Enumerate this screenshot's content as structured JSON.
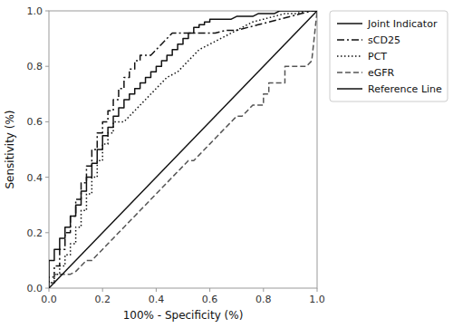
{
  "chart_data": {
    "type": "line",
    "xlabel": "100% - Specificity (%)",
    "ylabel": "Sensitivity (%)",
    "xlim": [
      0.0,
      1.0
    ],
    "ylim": [
      0.0,
      1.0
    ],
    "xticks": [
      {
        "value": 0.0,
        "label": "0.0"
      },
      0.2,
      0.4,
      0.6,
      0.8,
      {
        "value": 1.0,
        "label": "1.0"
      }
    ],
    "yticks": [
      {
        "value": 0.0,
        "label": "0.0"
      },
      0.2,
      0.4,
      0.6,
      0.8,
      {
        "value": 1.0,
        "label": "1.0"
      }
    ],
    "grid": false,
    "legend": "right",
    "series": [
      {
        "name": "Joint Indicator",
        "color": "#111111",
        "line_style": "solid",
        "x": [
          0.0,
          0.0,
          0.02,
          0.02,
          0.04,
          0.04,
          0.06,
          0.06,
          0.08,
          0.08,
          0.1,
          0.1,
          0.12,
          0.12,
          0.14,
          0.14,
          0.16,
          0.16,
          0.18,
          0.18,
          0.2,
          0.2,
          0.22,
          0.22,
          0.24,
          0.24,
          0.26,
          0.26,
          0.28,
          0.28,
          0.3,
          0.3,
          0.32,
          0.32,
          0.34,
          0.34,
          0.36,
          0.36,
          0.38,
          0.38,
          0.4,
          0.4,
          0.42,
          0.42,
          0.44,
          0.44,
          0.46,
          0.46,
          0.48,
          0.48,
          0.5,
          0.5,
          0.52,
          0.52,
          0.54,
          0.54,
          0.56,
          0.56,
          0.58,
          0.58,
          0.6,
          0.6,
          0.62,
          0.64,
          0.66,
          0.68,
          0.7,
          0.72,
          0.74,
          0.76,
          0.78,
          0.8,
          0.82,
          0.84,
          0.86,
          0.88,
          0.9,
          0.92,
          0.94,
          0.96,
          0.98,
          1.0
        ],
        "values": [
          0.0,
          0.1,
          0.1,
          0.14,
          0.14,
          0.18,
          0.18,
          0.22,
          0.22,
          0.26,
          0.26,
          0.3,
          0.3,
          0.35,
          0.35,
          0.4,
          0.4,
          0.45,
          0.45,
          0.5,
          0.5,
          0.55,
          0.55,
          0.58,
          0.58,
          0.62,
          0.62,
          0.65,
          0.65,
          0.68,
          0.68,
          0.7,
          0.7,
          0.72,
          0.72,
          0.74,
          0.74,
          0.76,
          0.76,
          0.78,
          0.78,
          0.8,
          0.8,
          0.82,
          0.82,
          0.84,
          0.84,
          0.86,
          0.86,
          0.88,
          0.88,
          0.9,
          0.9,
          0.92,
          0.92,
          0.94,
          0.94,
          0.95,
          0.95,
          0.96,
          0.96,
          0.97,
          0.97,
          0.97,
          0.97,
          0.97,
          0.98,
          0.98,
          0.98,
          0.98,
          0.99,
          0.99,
          0.99,
          0.99,
          1.0,
          1.0,
          1.0,
          1.0,
          1.0,
          1.0,
          1.0,
          1.0
        ]
      },
      {
        "name": "sCD25",
        "color": "#111111",
        "line_style": "dashdot",
        "x": [
          0.0,
          0.0,
          0.02,
          0.02,
          0.04,
          0.04,
          0.06,
          0.06,
          0.08,
          0.08,
          0.1,
          0.1,
          0.12,
          0.12,
          0.14,
          0.14,
          0.16,
          0.16,
          0.18,
          0.18,
          0.2,
          0.2,
          0.22,
          0.22,
          0.24,
          0.24,
          0.26,
          0.26,
          0.28,
          0.28,
          0.3,
          0.3,
          0.32,
          0.32,
          0.34,
          0.34,
          0.36,
          0.38,
          0.4,
          0.42,
          0.44,
          0.46,
          0.5,
          0.54,
          0.58,
          0.62,
          0.66,
          0.7,
          0.74,
          0.78,
          0.82,
          0.86,
          0.9,
          0.94,
          0.98,
          1.0
        ],
        "values": [
          0.0,
          0.04,
          0.04,
          0.08,
          0.08,
          0.14,
          0.14,
          0.2,
          0.2,
          0.26,
          0.26,
          0.32,
          0.32,
          0.38,
          0.38,
          0.44,
          0.44,
          0.5,
          0.5,
          0.56,
          0.56,
          0.6,
          0.6,
          0.64,
          0.64,
          0.68,
          0.68,
          0.72,
          0.72,
          0.76,
          0.76,
          0.79,
          0.79,
          0.82,
          0.82,
          0.84,
          0.84,
          0.84,
          0.86,
          0.88,
          0.9,
          0.92,
          0.92,
          0.92,
          0.92,
          0.92,
          0.93,
          0.93,
          0.94,
          0.95,
          0.96,
          0.97,
          0.98,
          0.99,
          1.0,
          1.0
        ]
      },
      {
        "name": "PCT",
        "color": "#111111",
        "line_style": "dotted",
        "x": [
          0.0,
          0.0,
          0.02,
          0.02,
          0.04,
          0.04,
          0.06,
          0.06,
          0.08,
          0.08,
          0.1,
          0.1,
          0.12,
          0.12,
          0.14,
          0.14,
          0.16,
          0.16,
          0.18,
          0.18,
          0.2,
          0.2,
          0.22,
          0.22,
          0.24,
          0.24,
          0.26,
          0.28,
          0.3,
          0.32,
          0.34,
          0.36,
          0.38,
          0.4,
          0.42,
          0.44,
          0.48,
          0.52,
          0.56,
          0.6,
          0.64,
          0.68,
          0.72,
          0.76,
          0.8,
          0.84,
          0.88,
          0.92,
          0.96,
          1.0
        ],
        "values": [
          0.0,
          0.02,
          0.02,
          0.05,
          0.05,
          0.08,
          0.08,
          0.12,
          0.12,
          0.16,
          0.16,
          0.22,
          0.22,
          0.28,
          0.28,
          0.34,
          0.34,
          0.4,
          0.4,
          0.46,
          0.46,
          0.52,
          0.52,
          0.56,
          0.56,
          0.6,
          0.6,
          0.6,
          0.62,
          0.64,
          0.66,
          0.68,
          0.7,
          0.72,
          0.74,
          0.76,
          0.78,
          0.82,
          0.86,
          0.88,
          0.9,
          0.92,
          0.94,
          0.96,
          0.97,
          0.98,
          0.99,
          0.99,
          1.0,
          1.0
        ]
      },
      {
        "name": "eGFR",
        "color": "#555555",
        "line_style": "dashed",
        "x": [
          0.0,
          0.0,
          0.02,
          0.02,
          0.04,
          0.06,
          0.08,
          0.1,
          0.12,
          0.14,
          0.16,
          0.18,
          0.2,
          0.22,
          0.24,
          0.26,
          0.28,
          0.3,
          0.32,
          0.34,
          0.36,
          0.38,
          0.4,
          0.42,
          0.44,
          0.46,
          0.48,
          0.5,
          0.52,
          0.54,
          0.56,
          0.58,
          0.6,
          0.62,
          0.64,
          0.66,
          0.68,
          0.7,
          0.72,
          0.74,
          0.76,
          0.78,
          0.8,
          0.8,
          0.82,
          0.82,
          0.84,
          0.86,
          0.88,
          0.88,
          0.9,
          0.92,
          0.94,
          0.96,
          0.98,
          1.0
        ],
        "values": [
          0.0,
          0.02,
          0.02,
          0.05,
          0.05,
          0.05,
          0.05,
          0.06,
          0.08,
          0.1,
          0.1,
          0.12,
          0.14,
          0.16,
          0.18,
          0.2,
          0.22,
          0.24,
          0.26,
          0.28,
          0.3,
          0.32,
          0.34,
          0.36,
          0.38,
          0.4,
          0.42,
          0.44,
          0.46,
          0.46,
          0.48,
          0.5,
          0.52,
          0.54,
          0.56,
          0.58,
          0.6,
          0.62,
          0.62,
          0.64,
          0.66,
          0.66,
          0.66,
          0.7,
          0.7,
          0.74,
          0.74,
          0.74,
          0.74,
          0.8,
          0.8,
          0.8,
          0.8,
          0.8,
          0.82,
          1.0
        ]
      },
      {
        "name": "Reference Line",
        "color": "#111111",
        "line_style": "solid",
        "x": [
          0,
          1
        ],
        "values": [
          0,
          1
        ]
      }
    ]
  }
}
